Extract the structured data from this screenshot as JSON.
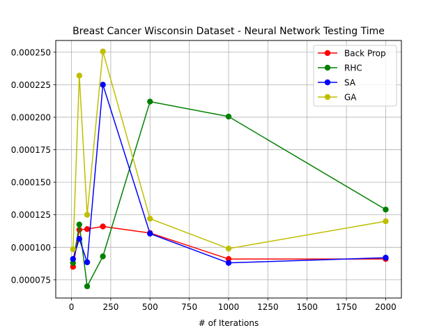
{
  "chart_data": {
    "type": "line",
    "title": "Breast Cancer Wisconsin Dataset - Neural Network Testing Time",
    "xlabel": "# of Iterations",
    "ylabel": "",
    "xlim": [
      -100,
      2100
    ],
    "ylim": [
      6.1e-05,
      0.000259
    ],
    "grid": true,
    "legend_position": "top-right",
    "x_ticks": [
      {
        "value": 0,
        "label": "0"
      },
      {
        "value": 250,
        "label": "250"
      },
      {
        "value": 500,
        "label": "500"
      },
      {
        "value": 750,
        "label": "750"
      },
      {
        "value": 1000,
        "label": "1000"
      },
      {
        "value": 1250,
        "label": "1250"
      },
      {
        "value": 1500,
        "label": "1500"
      },
      {
        "value": 1750,
        "label": "1750"
      },
      {
        "value": 2000,
        "label": "2000"
      }
    ],
    "y_ticks": [
      {
        "value": 7.5e-05,
        "label": "0.000075"
      },
      {
        "value": 0.0001,
        "label": "0.000100"
      },
      {
        "value": 0.000125,
        "label": "0.000125"
      },
      {
        "value": 0.00015,
        "label": "0.000150"
      },
      {
        "value": 0.000175,
        "label": "0.000175"
      },
      {
        "value": 0.0002,
        "label": "0.000200"
      },
      {
        "value": 0.000225,
        "label": "0.000225"
      },
      {
        "value": 0.00025,
        "label": "0.000250"
      }
    ],
    "x": [
      10,
      50,
      100,
      200,
      500,
      1000,
      2000
    ],
    "series": [
      {
        "name": "Back Prop",
        "color": "#ff0000",
        "values": [
          8.5e-05,
          0.0001135,
          0.000114,
          0.000116,
          0.000111,
          9.1e-05,
          9.1e-05
        ]
      },
      {
        "name": "RHC",
        "color": "#008000",
        "values": [
          8.8e-05,
          0.0001175,
          7e-05,
          9.3e-05,
          0.000212,
          0.0002005,
          0.000129
        ]
      },
      {
        "name": "SA",
        "color": "#0000ff",
        "values": [
          9.1e-05,
          0.0001065,
          8.85e-05,
          0.000225,
          0.0001105,
          8.8e-05,
          9.2e-05
        ]
      },
      {
        "name": "GA",
        "color": "#bfbf00",
        "values": [
          9.85e-05,
          0.000232,
          0.000125,
          0.0002505,
          0.000122,
          9.9e-05,
          0.00012
        ]
      }
    ]
  }
}
